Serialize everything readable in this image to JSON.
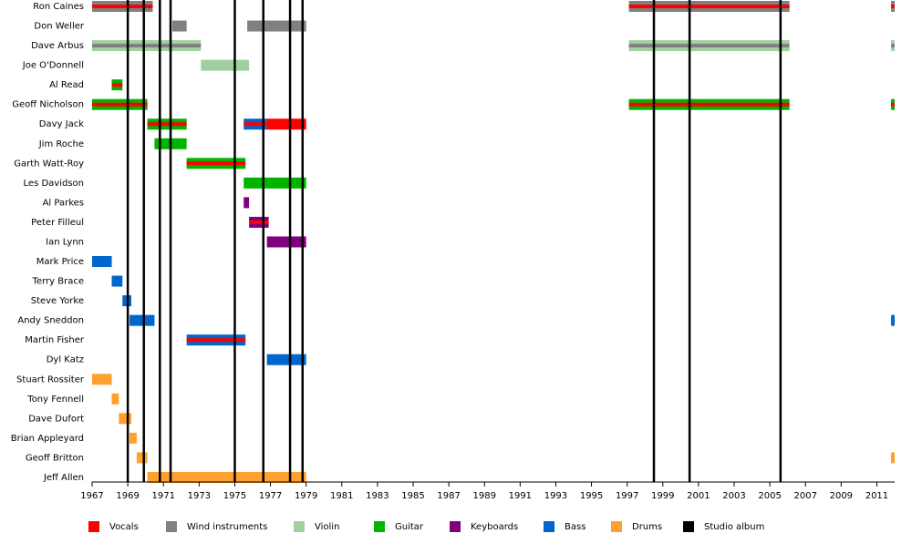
{
  "chart_data": {
    "type": "timeline",
    "xlim": [
      1967,
      2012
    ],
    "xticks": [
      1967,
      1969,
      1971,
      1973,
      1975,
      1977,
      1979,
      1981,
      1983,
      1985,
      1987,
      1989,
      1991,
      1993,
      1995,
      1997,
      1999,
      2001,
      2003,
      2005,
      2007,
      2009,
      2011
    ],
    "roles": [
      {
        "name": "Vocals",
        "color": "#ff0000"
      },
      {
        "name": "Wind instruments",
        "color": "#808080"
      },
      {
        "name": "Violin",
        "color": "#a0d0a0"
      },
      {
        "name": "Guitar",
        "color": "#00b400"
      },
      {
        "name": "Keyboards",
        "color": "#800080"
      },
      {
        "name": "Bass",
        "color": "#0066cc"
      },
      {
        "name": "Drums",
        "color": "#ffa030"
      },
      {
        "name": "Studio album",
        "color": "#000000"
      }
    ],
    "albums": [
      1969.0,
      1969.9,
      1970.8,
      1971.4,
      1975.0,
      1976.6,
      1978.1,
      1978.8,
      1998.5,
      2000.5,
      2005.6
    ],
    "members": [
      {
        "name": "Ron Caines",
        "bars": [
          {
            "start": 1967,
            "end": 1970.4,
            "role": "Wind instruments",
            "stripe": "Vocals"
          },
          {
            "start": 1997.1,
            "end": 2006.1,
            "role": "Wind instruments",
            "stripe": "Vocals"
          },
          {
            "start": 2011.8,
            "end": 2012,
            "role": "Wind instruments",
            "stripe": "Vocals"
          }
        ]
      },
      {
        "name": "Don Weller",
        "bars": [
          {
            "start": 1971.5,
            "end": 1972.3,
            "role": "Wind instruments"
          },
          {
            "start": 1975.7,
            "end": 1979,
            "role": "Wind instruments"
          }
        ]
      },
      {
        "name": "Dave Arbus",
        "bars": [
          {
            "start": 1967,
            "end": 1973.1,
            "role": "Violin",
            "stripe": "Wind instruments"
          },
          {
            "start": 1997.1,
            "end": 2006.1,
            "role": "Violin",
            "stripe": "Wind instruments"
          },
          {
            "start": 2011.8,
            "end": 2012,
            "role": "Violin",
            "stripe": "Wind instruments"
          }
        ]
      },
      {
        "name": "Joe O'Donnell",
        "bars": [
          {
            "start": 1973.1,
            "end": 1975.8,
            "role": "Violin"
          }
        ]
      },
      {
        "name": "Al Read",
        "bars": [
          {
            "start": 1968.1,
            "end": 1968.7,
            "role": "Guitar",
            "stripe": "Vocals"
          }
        ]
      },
      {
        "name": "Geoff Nicholson",
        "bars": [
          {
            "start": 1967,
            "end": 1970.1,
            "role": "Guitar",
            "stripe": "Vocals"
          },
          {
            "start": 1997.1,
            "end": 2006.1,
            "role": "Guitar",
            "stripe": "Vocals"
          },
          {
            "start": 2011.8,
            "end": 2012,
            "role": "Guitar",
            "stripe": "Vocals"
          }
        ]
      },
      {
        "name": "Davy Jack",
        "bars": [
          {
            "start": 1970.1,
            "end": 1972.3,
            "role": "Guitar",
            "stripe": "Vocals"
          },
          {
            "start": 1975.5,
            "end": 1976.8,
            "role": "Bass",
            "stripe": "Vocals"
          },
          {
            "start": 1976.8,
            "end": 1979,
            "role": "Vocals"
          }
        ]
      },
      {
        "name": "Jim Roche",
        "bars": [
          {
            "start": 1970.5,
            "end": 1972.3,
            "role": "Guitar"
          }
        ]
      },
      {
        "name": "Garth Watt-Roy",
        "bars": [
          {
            "start": 1972.3,
            "end": 1975.6,
            "role": "Guitar",
            "stripe": "Vocals"
          }
        ]
      },
      {
        "name": "Les Davidson",
        "bars": [
          {
            "start": 1975.5,
            "end": 1979,
            "role": "Guitar"
          }
        ]
      },
      {
        "name": "Al Parkes",
        "bars": [
          {
            "start": 1975.5,
            "end": 1975.8,
            "role": "Keyboards"
          }
        ]
      },
      {
        "name": "Peter Filleul",
        "bars": [
          {
            "start": 1975.8,
            "end": 1976.9,
            "role": "Keyboards",
            "stripe": "Vocals"
          }
        ]
      },
      {
        "name": "Ian Lynn",
        "bars": [
          {
            "start": 1976.8,
            "end": 1979,
            "role": "Keyboards"
          }
        ]
      },
      {
        "name": "Mark Price",
        "bars": [
          {
            "start": 1967,
            "end": 1968.1,
            "role": "Bass"
          }
        ]
      },
      {
        "name": "Terry Brace",
        "bars": [
          {
            "start": 1968.1,
            "end": 1968.7,
            "role": "Bass"
          }
        ]
      },
      {
        "name": "Steve Yorke",
        "bars": [
          {
            "start": 1968.7,
            "end": 1969.2,
            "role": "Bass"
          }
        ]
      },
      {
        "name": "Andy Sneddon",
        "bars": [
          {
            "start": 1969.1,
            "end": 1970.5,
            "role": "Bass"
          },
          {
            "start": 2011.8,
            "end": 2012,
            "role": "Bass"
          }
        ]
      },
      {
        "name": "Martin Fisher",
        "bars": [
          {
            "start": 1972.3,
            "end": 1975.6,
            "role": "Bass",
            "stripe": "Vocals"
          }
        ]
      },
      {
        "name": "Dyl Katz",
        "bars": [
          {
            "start": 1976.8,
            "end": 1979,
            "role": "Bass"
          }
        ]
      },
      {
        "name": "Stuart Rossiter",
        "bars": [
          {
            "start": 1967,
            "end": 1968.1,
            "role": "Drums"
          }
        ]
      },
      {
        "name": "Tony Fennell",
        "bars": [
          {
            "start": 1968.1,
            "end": 1968.5,
            "role": "Drums"
          }
        ]
      },
      {
        "name": "Dave Dufort",
        "bars": [
          {
            "start": 1968.5,
            "end": 1969.2,
            "role": "Drums"
          }
        ]
      },
      {
        "name": "Brian Appleyard",
        "bars": [
          {
            "start": 1969.1,
            "end": 1969.5,
            "role": "Drums"
          }
        ]
      },
      {
        "name": "Geoff Britton",
        "bars": [
          {
            "start": 1969.5,
            "end": 1970.1,
            "role": "Drums"
          },
          {
            "start": 2011.8,
            "end": 2012,
            "role": "Drums"
          }
        ]
      },
      {
        "name": "Jeff Allen",
        "bars": [
          {
            "start": 1970.1,
            "end": 1979,
            "role": "Drums"
          }
        ]
      }
    ]
  }
}
